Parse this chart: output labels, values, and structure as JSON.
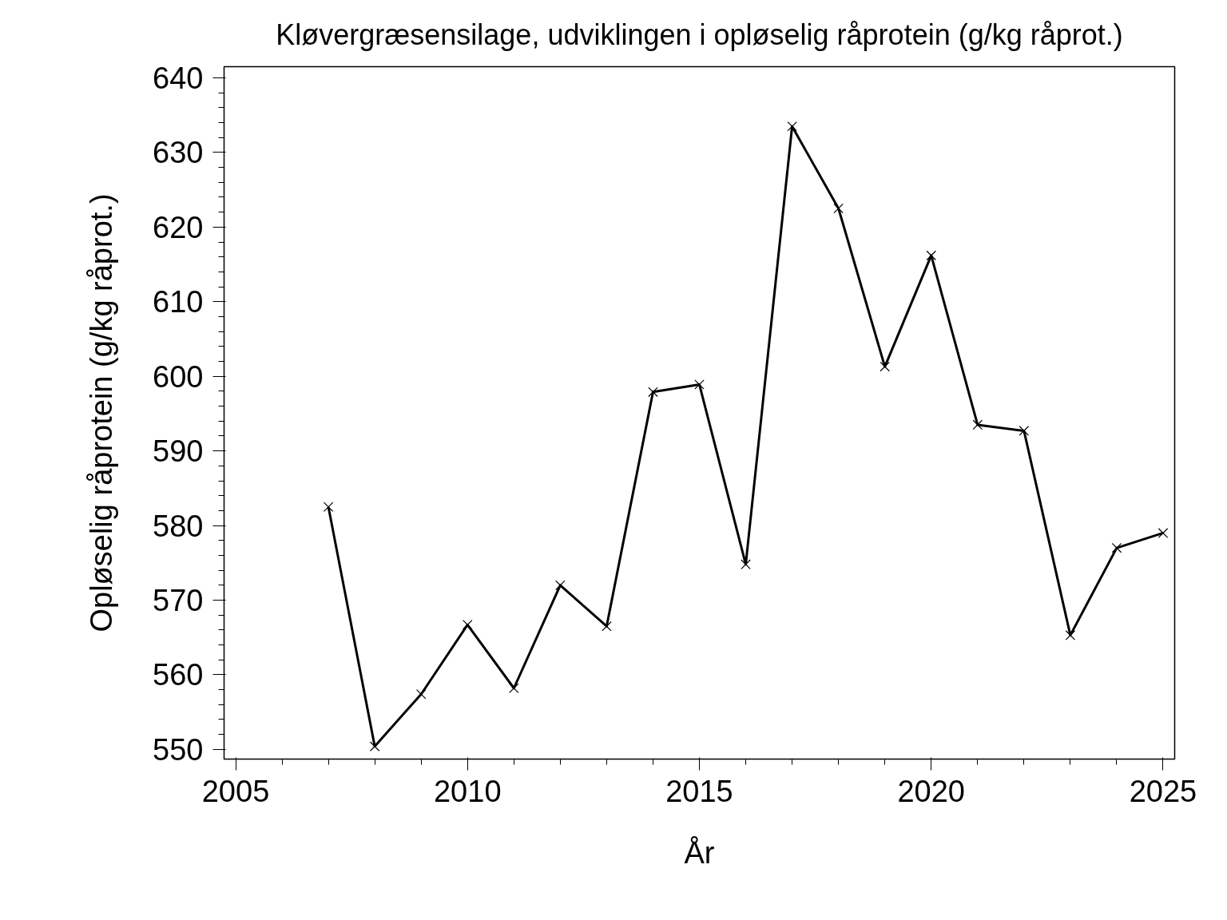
{
  "chart_data": {
    "type": "line",
    "title": "Kløvergræsensilage, udviklingen i opløselig råprotein (g/kg råprot.)",
    "xlabel": "År",
    "ylabel": "Opløselig råprotein (g/kg råprot.)",
    "x": [
      2007,
      2008,
      2009,
      2010,
      2011,
      2012,
      2013,
      2014,
      2015,
      2016,
      2017,
      2018,
      2019,
      2020,
      2021,
      2022,
      2023,
      2024,
      2025
    ],
    "series": [
      {
        "color": "#000000",
        "values": [
          582.5,
          550.4,
          557.4,
          566.7,
          558.2,
          572.0,
          566.5,
          597.9,
          598.9,
          574.8,
          633.5,
          622.5,
          601.3,
          616.2,
          593.5,
          592.7,
          565.3,
          577.0,
          579.0
        ]
      }
    ],
    "xlim": [
      2004.75,
      2025.25
    ],
    "xticks": [
      2005,
      2010,
      2015,
      2020,
      2025
    ],
    "ylim": [
      548.7,
      641.5
    ],
    "yticks": [
      550,
      560,
      570,
      580,
      590,
      600,
      610,
      620,
      630,
      640
    ],
    "grid": false,
    "marker": "cross",
    "line_style": "solid"
  }
}
